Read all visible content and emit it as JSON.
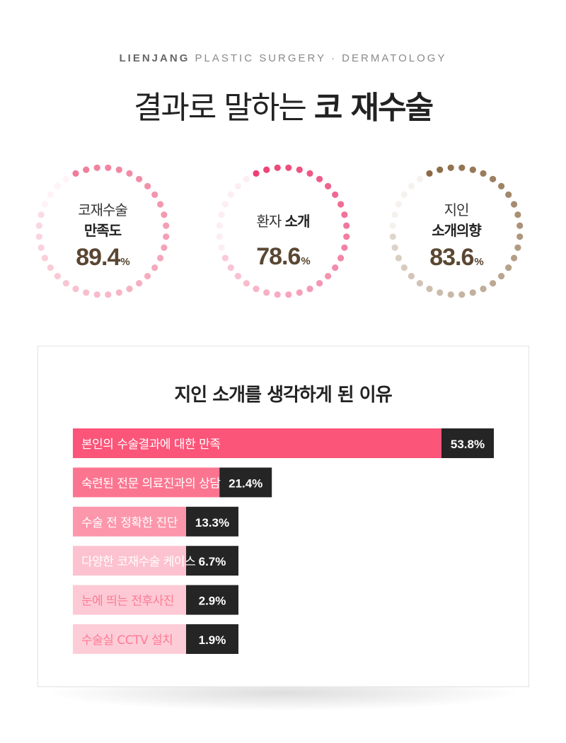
{
  "header": {
    "subtitle_strong": "LIENJANG",
    "subtitle_rest": "PLASTIC SURGERY · DERMATOLOGY",
    "title_light": "결과로 말하는",
    "title_bold": "코 재수술"
  },
  "stats": [
    {
      "line1": "코재수술",
      "line2": "만족도",
      "value": "89.4",
      "unit": "%",
      "percent": 89.4,
      "color": "#f07c9a"
    },
    {
      "line1": "환자",
      "line2": "소개",
      "value": "78.6",
      "unit": "%",
      "percent": 78.6,
      "color": "#ec3f73"
    },
    {
      "line1": "지인",
      "line2": "소개의향",
      "value": "83.6",
      "unit": "%",
      "percent": 83.6,
      "color": "#8c6a46"
    }
  ],
  "chart_data": {
    "type": "bar",
    "title": "지인 소개를 생각하게 된 이유",
    "categories": [
      "본인의 수술결과에 대한 만족",
      "숙련된 전문 의료진과의 상담",
      "수술 전 정확한 진단",
      "다양한 코재수술 케이스",
      "눈에 띄는 전후사진",
      "수술실 CCTV 설치"
    ],
    "values": [
      53.8,
      21.4,
      13.3,
      6.7,
      2.9,
      1.9
    ],
    "value_labels": [
      "53.8%",
      "21.4%",
      "13.3%",
      "6.7%",
      "2.9%",
      "1.9%"
    ],
    "bar_colors": [
      "#fb5579",
      "#fc7590",
      "#fc96ab",
      "#fdc2cf",
      "#fdc9d4",
      "#fdcdd7"
    ],
    "label_colors": [
      "#ffffff",
      "#ffffff",
      "#ffffff",
      "#ffffff",
      "#fd7a95",
      "#fd7a95"
    ],
    "value_box_color": "#252525",
    "grid": false
  }
}
